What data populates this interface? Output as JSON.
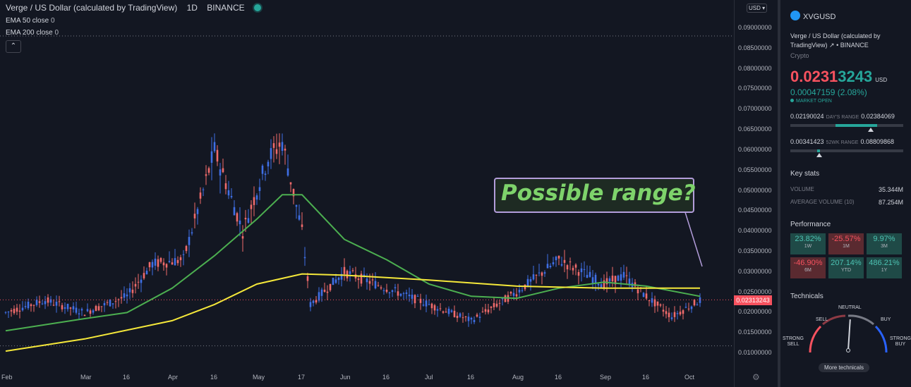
{
  "header": {
    "title": "Verge / US Dollar (calculated by TradingView)",
    "interval": "1D",
    "exchange": "BINANCE"
  },
  "indicators": [
    {
      "label": "EMA 50 close",
      "value": "0",
      "color": "#4caf50"
    },
    {
      "label": "EMA 200 close",
      "value": "0",
      "color": "#f5e83a"
    }
  ],
  "annotation": {
    "text": "Possible range?"
  },
  "axis": {
    "currency_button": "USD",
    "y_ticks": [
      "0.09000000",
      "0.08500000",
      "0.08000000",
      "0.07500000",
      "0.07000000",
      "0.06500000",
      "0.06000000",
      "0.05500000",
      "0.05000000",
      "0.04500000",
      "0.04000000",
      "0.03500000",
      "0.03000000",
      "0.02500000",
      "0.02000000",
      "0.01500000",
      "0.01000000"
    ],
    "current_price_label": "0.02313243",
    "x_ticks": [
      "Feb",
      "Mar",
      "16",
      "Apr",
      "16",
      "May",
      "17",
      "Jun",
      "16",
      "Jul",
      "16",
      "Aug",
      "16",
      "Sep",
      "16",
      "Oct"
    ]
  },
  "chart_data": {
    "type": "candlestick",
    "symbol": "XVGUSD",
    "interval": "1D",
    "ylim": [
      0.005,
      0.095
    ],
    "y_ticks": [
      0.09,
      0.085,
      0.08,
      0.075,
      0.07,
      0.065,
      0.06,
      0.055,
      0.05,
      0.045,
      0.04,
      0.035,
      0.03,
      0.025,
      0.02,
      0.015,
      0.01
    ],
    "x_ticks": [
      "Feb",
      "Mar",
      "16",
      "Apr",
      "16",
      "May",
      "17",
      "Jun",
      "16",
      "Jul",
      "16",
      "Aug",
      "16",
      "Sep",
      "16",
      "Oct"
    ],
    "price_path": [
      {
        "date": "Feb 01",
        "value": 0.02
      },
      {
        "date": "Feb 15",
        "value": 0.023
      },
      {
        "date": "Mar 01",
        "value": 0.02
      },
      {
        "date": "Mar 16",
        "value": 0.024
      },
      {
        "date": "Mar 25",
        "value": 0.032
      },
      {
        "date": "Apr 05",
        "value": 0.033
      },
      {
        "date": "Apr 12",
        "value": 0.05
      },
      {
        "date": "Apr 16",
        "value": 0.06
      },
      {
        "date": "Apr 20",
        "value": 0.052
      },
      {
        "date": "Apr 26",
        "value": 0.04
      },
      {
        "date": "May 05",
        "value": 0.058
      },
      {
        "date": "May 10",
        "value": 0.062
      },
      {
        "date": "May 17",
        "value": 0.04
      },
      {
        "date": "May 20",
        "value": 0.022
      },
      {
        "date": "Jun 01",
        "value": 0.03
      },
      {
        "date": "Jun 16",
        "value": 0.026
      },
      {
        "date": "Jul 01",
        "value": 0.022
      },
      {
        "date": "Jul 16",
        "value": 0.018
      },
      {
        "date": "Aug 01",
        "value": 0.025
      },
      {
        "date": "Aug 16",
        "value": 0.033
      },
      {
        "date": "Sep 01",
        "value": 0.027
      },
      {
        "date": "Sep 08",
        "value": 0.029
      },
      {
        "date": "Sep 16",
        "value": 0.024
      },
      {
        "date": "Sep 25",
        "value": 0.019
      },
      {
        "date": "Oct 05",
        "value": 0.023
      }
    ],
    "series": [
      {
        "name": "EMA 50",
        "color": "#4caf50",
        "points": [
          {
            "date": "Feb 01",
            "value": 0.0155
          },
          {
            "date": "Mar 01",
            "value": 0.0185
          },
          {
            "date": "Mar 16",
            "value": 0.02
          },
          {
            "date": "Apr 01",
            "value": 0.026
          },
          {
            "date": "Apr 16",
            "value": 0.034
          },
          {
            "date": "May 01",
            "value": 0.043
          },
          {
            "date": "May 10",
            "value": 0.049
          },
          {
            "date": "May 17",
            "value": 0.049
          },
          {
            "date": "Jun 01",
            "value": 0.038
          },
          {
            "date": "Jun 16",
            "value": 0.033
          },
          {
            "date": "Jul 01",
            "value": 0.027
          },
          {
            "date": "Jul 16",
            "value": 0.024
          },
          {
            "date": "Aug 01",
            "value": 0.0235
          },
          {
            "date": "Aug 16",
            "value": 0.026
          },
          {
            "date": "Sep 01",
            "value": 0.0275
          },
          {
            "date": "Sep 16",
            "value": 0.0265
          },
          {
            "date": "Oct 05",
            "value": 0.024
          }
        ]
      },
      {
        "name": "EMA 200",
        "color": "#f5e83a",
        "points": [
          {
            "date": "Feb 01",
            "value": 0.0105
          },
          {
            "date": "Mar 01",
            "value": 0.0135
          },
          {
            "date": "Apr 01",
            "value": 0.018
          },
          {
            "date": "Apr 16",
            "value": 0.022
          },
          {
            "date": "May 01",
            "value": 0.027
          },
          {
            "date": "May 17",
            "value": 0.0295
          },
          {
            "date": "Jun 01",
            "value": 0.0292
          },
          {
            "date": "Jul 01",
            "value": 0.028
          },
          {
            "date": "Aug 01",
            "value": 0.0265
          },
          {
            "date": "Sep 01",
            "value": 0.026
          },
          {
            "date": "Oct 05",
            "value": 0.026
          }
        ]
      }
    ],
    "current_price": 0.02313243,
    "grid": false,
    "legend": "top-left"
  },
  "panel": {
    "symbol": "XVGUSD",
    "full_name": "Verge / US Dollar (calculated by TradingView)",
    "exchange": "BINANCE",
    "category": "Crypto",
    "price_main": "0.0231",
    "price_tail": "3243",
    "price_unit": "USD",
    "change": "0.00047159 (2.08%)",
    "market_status": "MARKET OPEN",
    "days_range": {
      "low": "0.02190024",
      "label": "DAY'S RANGE",
      "high": "0.02384069",
      "position": 0.62
    },
    "wk52_range": {
      "low": "0.00341423",
      "label": "52WK RANGE",
      "high": "0.08809868",
      "position": 0.23
    },
    "key_stats_title": "Key stats",
    "volume_label": "VOLUME",
    "volume": "35.344M",
    "avg_volume_label": "AVERAGE VOLUME (10)",
    "avg_volume": "87.254M",
    "performance_title": "Performance",
    "performance": [
      {
        "value": "23.82%",
        "label": "1W",
        "dir": "up"
      },
      {
        "value": "-25.57%",
        "label": "1M",
        "dir": "dn"
      },
      {
        "value": "9.97%",
        "label": "3M",
        "dir": "up"
      },
      {
        "value": "-46.90%",
        "label": "6M",
        "dir": "dn"
      },
      {
        "value": "207.14%",
        "label": "YTD",
        "dir": "up"
      },
      {
        "value": "486.21%",
        "label": "1Y",
        "dir": "up"
      }
    ],
    "technicals_title": "Technicals",
    "gauge": {
      "neutral": "NEUTRAL",
      "sell": "SELL",
      "buy": "BUY",
      "strong_sell": "STRONG SELL",
      "strong_buy": "STRONG BUY",
      "value": 0.52
    },
    "more_button": "More technicals"
  }
}
